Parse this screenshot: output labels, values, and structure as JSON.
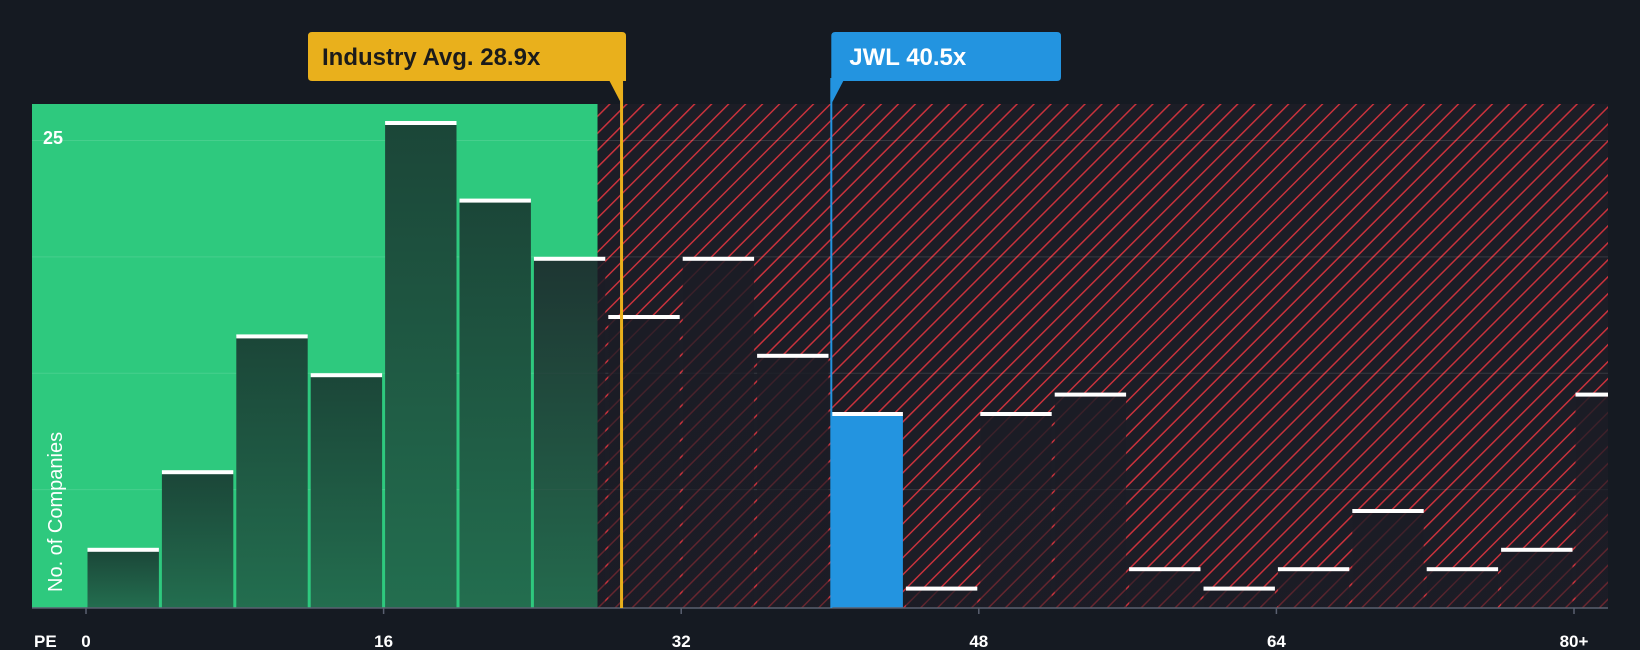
{
  "chart_data": {
    "type": "bar",
    "title": "",
    "xlabel": "PE",
    "ylabel": "No. of Companies",
    "x_ticks": [
      "0",
      "16",
      "32",
      "48",
      "64",
      "80+"
    ],
    "x_tick_values": [
      0,
      16,
      32,
      48,
      64,
      80
    ],
    "y_ticks": [
      "25"
    ],
    "y_tick_values": [
      25
    ],
    "xlim": [
      0,
      82
    ],
    "ylim": [
      0,
      26
    ],
    "bin_width": 4,
    "bins": [
      {
        "start": 0,
        "value": 3
      },
      {
        "start": 4,
        "value": 7
      },
      {
        "start": 8,
        "value": 14
      },
      {
        "start": 12,
        "value": 12
      },
      {
        "start": 16,
        "value": 25
      },
      {
        "start": 20,
        "value": 21
      },
      {
        "start": 24,
        "value": 18
      },
      {
        "start": 28,
        "value": 15
      },
      {
        "start": 32,
        "value": 18
      },
      {
        "start": 36,
        "value": 13
      },
      {
        "start": 40,
        "value": 10,
        "highlight": true
      },
      {
        "start": 44,
        "value": 1
      },
      {
        "start": 48,
        "value": 10
      },
      {
        "start": 52,
        "value": 11
      },
      {
        "start": 56,
        "value": 2
      },
      {
        "start": 60,
        "value": 1
      },
      {
        "start": 64,
        "value": 2
      },
      {
        "start": 68,
        "value": 5
      },
      {
        "start": 72,
        "value": 2
      },
      {
        "start": 76,
        "value": 3
      },
      {
        "start": 80,
        "value": 11
      }
    ],
    "industry_avg": {
      "label": "Industry Avg. 28.9x",
      "value": 28.9
    },
    "company": {
      "label": "JWL 40.5x",
      "value": 40.5
    },
    "colors": {
      "background": "#151a22",
      "undervalued_zone": "#2ec97e",
      "overvalued_hatch": "#c8323c",
      "bar_dark": "#1c4a3a",
      "bar_highlight": "#2394e0",
      "industry_callout": "#e9b01c",
      "company_callout": "#2394e0"
    }
  }
}
